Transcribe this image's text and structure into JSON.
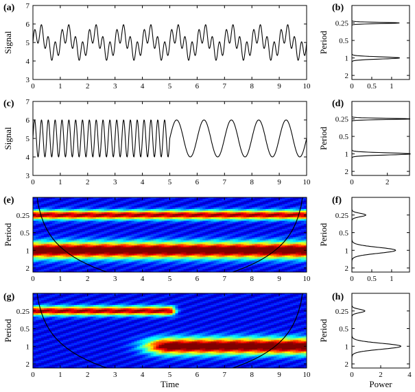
{
  "chart_data": [
    {
      "panel": "(a)",
      "type": "line",
      "ylabel": "Signal",
      "xlim": [
        0,
        10
      ],
      "ylim": [
        3,
        7
      ],
      "xticks": [
        "0",
        "1",
        "2",
        "3",
        "4",
        "5",
        "6",
        "7",
        "8",
        "9",
        "10"
      ],
      "yticks": [
        "3",
        "4",
        "5",
        "6",
        "7"
      ],
      "components": [
        {
          "period": 1,
          "amplitude": 0.5,
          "offset": 5
        },
        {
          "period": 0.25,
          "amplitude": 0.5
        }
      ]
    },
    {
      "panel": "(b)",
      "type": "line",
      "ylabel": "Period",
      "xticks": [
        "0",
        "0.5",
        "1"
      ],
      "yticks": [
        "0.25",
        "0.5",
        "1",
        "2"
      ],
      "peaks": [
        {
          "period": 0.25,
          "power": 1.2
        },
        {
          "period": 1,
          "power": 1.2
        }
      ]
    },
    {
      "panel": "(c)",
      "type": "line",
      "ylabel": "Signal",
      "xlim": [
        0,
        10
      ],
      "ylim": [
        3,
        7
      ],
      "xticks": [
        "0",
        "1",
        "2",
        "3",
        "4",
        "5",
        "6",
        "7",
        "8",
        "9",
        "10"
      ],
      "yticks": [
        "3",
        "4",
        "5",
        "6",
        "7"
      ],
      "segments": [
        {
          "from": 0,
          "to": 5,
          "period": 0.25,
          "amplitude": 1,
          "offset": 5
        },
        {
          "from": 5,
          "to": 10,
          "period": 1,
          "amplitude": 1,
          "offset": 5
        }
      ]
    },
    {
      "panel": "(d)",
      "type": "line",
      "ylabel": "Period",
      "xticks": [
        "0",
        "2"
      ],
      "yticks": [
        "0.25",
        "0.5",
        "1",
        "2"
      ],
      "peaks": [
        {
          "period": 0.25,
          "power": 3.3
        },
        {
          "period": 1,
          "power": 3.3
        }
      ]
    },
    {
      "panel": "(e)",
      "type": "heatmap",
      "ylabel": "Period",
      "xlim": [
        0,
        10
      ],
      "xticks": [
        "0",
        "1",
        "2",
        "3",
        "4",
        "5",
        "6",
        "7",
        "8",
        "9",
        "10"
      ],
      "yticks": [
        "0.25",
        "0.5",
        "1",
        "2"
      ],
      "bands": [
        {
          "period": 0.25,
          "from": 0,
          "to": 10,
          "strength": 0.85
        },
        {
          "period": 1,
          "from": 0,
          "to": 10,
          "strength": 1.0
        }
      ]
    },
    {
      "panel": "(f)",
      "type": "line",
      "ylabel": "Period",
      "xticks": [
        "0",
        "0.5",
        "1"
      ],
      "yticks": [
        "0.25",
        "0.5",
        "1",
        "2"
      ],
      "peaks": [
        {
          "period": 0.25,
          "power": 0.35
        },
        {
          "period": 1,
          "power": 1.1
        }
      ]
    },
    {
      "panel": "(g)",
      "type": "heatmap",
      "ylabel": "Period",
      "xlabel": "Time",
      "xlim": [
        0,
        10
      ],
      "xticks": [
        "0",
        "1",
        "2",
        "3",
        "4",
        "5",
        "6",
        "7",
        "8",
        "9",
        "10"
      ],
      "yticks": [
        "0.25",
        "0.5",
        "1",
        "2"
      ],
      "bands": [
        {
          "period": 0.25,
          "from": 0,
          "to": 5,
          "strength": 0.85
        },
        {
          "period": 1,
          "from": 5,
          "to": 10,
          "strength": 1.0
        }
      ]
    },
    {
      "panel": "(h)",
      "type": "line",
      "ylabel": "Period",
      "xlabel": "Power",
      "xticks": [
        "0",
        "2",
        "4"
      ],
      "yticks": [
        "0.25",
        "0.5",
        "1",
        "2"
      ],
      "peaks": [
        {
          "period": 0.25,
          "power": 0.9
        },
        {
          "period": 1,
          "power": 3.4
        }
      ]
    }
  ]
}
